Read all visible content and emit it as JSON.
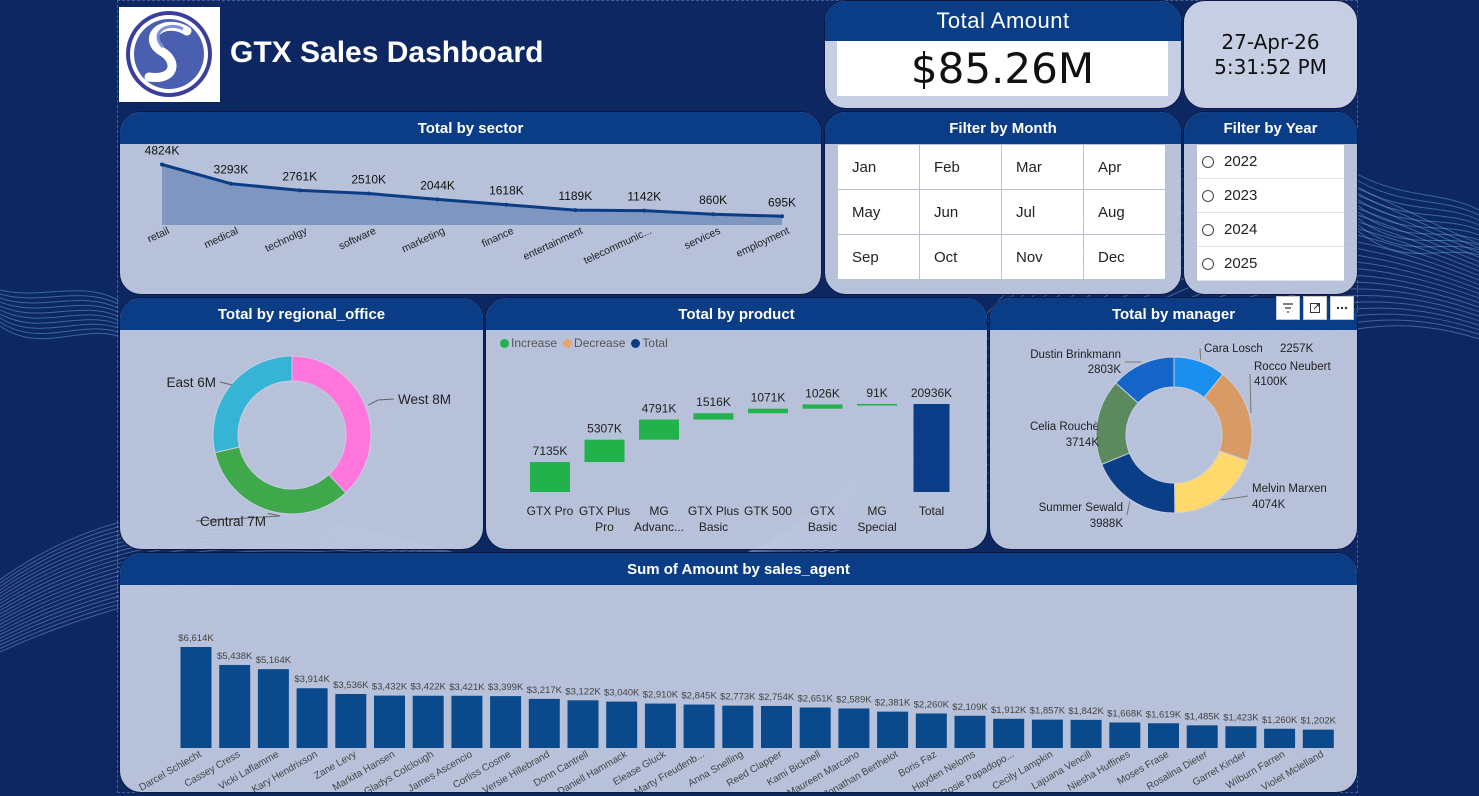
{
  "header": {
    "title": "GTX Sales Dashboard",
    "total_amount_label": "Total Amount",
    "total_amount_value": "$85.26M",
    "date": "27-Apr-26",
    "time": "5:31:52 PM"
  },
  "filters": {
    "month_title": "Filter by Month",
    "months": [
      "Jan",
      "Feb",
      "Mar",
      "Apr",
      "May",
      "Jun",
      "Jul",
      "Aug",
      "Sep",
      "Oct",
      "Nov",
      "Dec"
    ],
    "year_title": "Filter by Year",
    "years": [
      "2022",
      "2023",
      "2024",
      "2025"
    ]
  },
  "colors": {
    "background": "#0d2763",
    "header_bar": "#0a3d86",
    "bar": "#0a4a8c",
    "increase": "#22b24c",
    "decrease": "#e8a36e",
    "total": "#0a3d86"
  },
  "chart_data": [
    {
      "id": "sector",
      "type": "area",
      "title": "Total by sector",
      "categories": [
        "retail",
        "medical",
        "technolgy",
        "software",
        "marketing",
        "finance",
        "entertainment",
        "telecommunic...",
        "services",
        "employment"
      ],
      "values": [
        4824,
        3293,
        2761,
        2510,
        2044,
        1618,
        1189,
        1142,
        860,
        695
      ],
      "data_labels": [
        "4824K",
        "3293K",
        "2761K",
        "2510K",
        "2044K",
        "1618K",
        "1189K",
        "1142K",
        "860K",
        "695K"
      ],
      "ylim": [
        0,
        5000
      ]
    },
    {
      "id": "regional",
      "type": "pie",
      "title": "Total by regional_office",
      "labels": [
        "West",
        "Central",
        "East"
      ],
      "values": [
        8,
        7,
        6
      ],
      "data_labels": [
        "West 8M",
        "Central 7M",
        "East 6M"
      ],
      "colors": [
        "#ff77dd",
        "#3fa84a",
        "#35b4d6"
      ]
    },
    {
      "id": "product",
      "type": "bar",
      "title": "Total by product",
      "legend": [
        "Increase",
        "Decrease",
        "Total"
      ],
      "categories": [
        "GTX Pro",
        "GTX Plus Pro",
        "MG Advanc...",
        "GTX Plus Basic",
        "GTK 500",
        "GTX Basic",
        "MG Special",
        "Total"
      ],
      "values": [
        7135,
        5307,
        4791,
        1516,
        1071,
        1026,
        91,
        20936
      ],
      "data_labels": [
        "7135K",
        "5307K",
        "4791K",
        "1516K",
        "1071K",
        "1026K",
        "91K",
        "20936K"
      ]
    },
    {
      "id": "manager",
      "type": "pie",
      "title": "Total by manager",
      "labels": [
        "Cara Losch",
        "Rocco Neubert",
        "Melvin Marxen",
        "Summer Sewald",
        "Celia Rouche",
        "Dustin Brinkmann"
      ],
      "values": [
        2257,
        4100,
        4074,
        3988,
        3714,
        2803
      ],
      "data_labels": [
        "2257K",
        "4100K",
        "4074K",
        "3988K",
        "3714K",
        "2803K"
      ],
      "colors": [
        "#1a8fef",
        "#d99b66",
        "#ffd96b",
        "#0a3f88",
        "#5a8a5e",
        "#1565c8"
      ]
    },
    {
      "id": "sales_agent",
      "type": "bar",
      "title": "Sum of Amount by sales_agent",
      "categories": [
        "Darcel Schlecht",
        "Cassey Cress",
        "Vicki Laflamme",
        "Kary Hendrixson",
        "Zane Levy",
        "Markita Hansen",
        "Gladys Colclough",
        "James Ascencio",
        "Corliss Cosme",
        "Versie Hillebrand",
        "Donn Cantrell",
        "Daniell Hammack",
        "Elease Gluck",
        "Marty Freudenb...",
        "Anna Snelling",
        "Reed Clapper",
        "Kami Bicknell",
        "Maureen Marcano",
        "Jonathan Berthelot",
        "Boris Faz",
        "Hayden Neloms",
        "Rosie Papadopo...",
        "Cecily Lampkin",
        "Lajuana Vencill",
        "Niesha Huffines",
        "Moses Frase",
        "Rosalina Dieter",
        "Garret Kinder",
        "Wilburn Farren",
        "Violet Mclelland"
      ],
      "values": [
        6614,
        5438,
        5164,
        3914,
        3536,
        3432,
        3422,
        3421,
        3399,
        3217,
        3122,
        3040,
        2910,
        2845,
        2773,
        2754,
        2651,
        2589,
        2381,
        2260,
        2109,
        1912,
        1857,
        1842,
        1668,
        1619,
        1485,
        1423,
        1260,
        1202
      ],
      "data_labels": [
        "$6,614K",
        "$5,438K",
        "$5,164K",
        "$3,914K",
        "$3,536K",
        "$3,432K",
        "$3,422K",
        "$3,421K",
        "$3,399K",
        "$3,217K",
        "$3,122K",
        "$3,040K",
        "$2,910K",
        "$2,845K",
        "$2,773K",
        "$2,754K",
        "$2,651K",
        "$2,589K",
        "$2,381K",
        "$2,260K",
        "$2,109K",
        "$1,912K",
        "$1,857K",
        "$1,842K",
        "$1,668K",
        "$1,619K",
        "$1,485K",
        "$1,423K",
        "$1,260K",
        "$1,202K"
      ]
    }
  ]
}
